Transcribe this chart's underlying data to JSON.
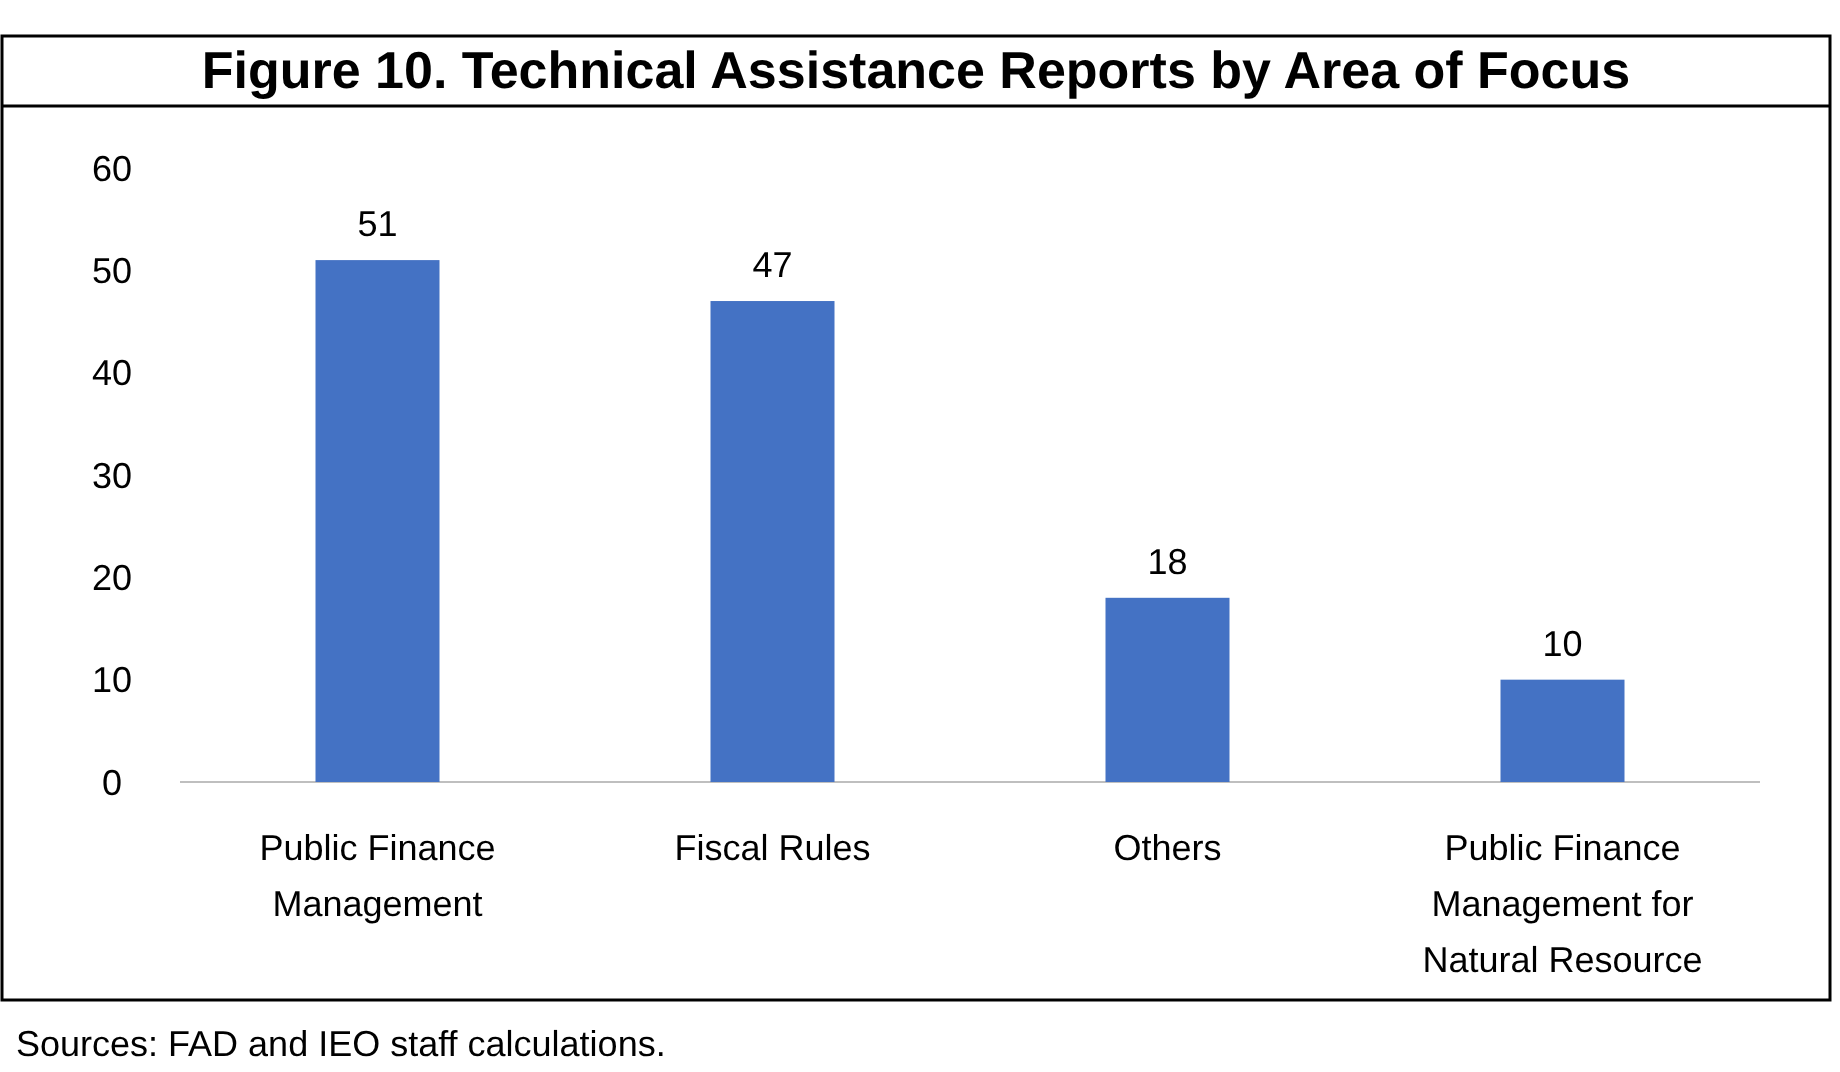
{
  "chart_data": {
    "type": "bar",
    "title": "Figure 10. Technical Assistance Reports by Area of Focus",
    "categories": [
      "Public Finance Management",
      "Fiscal Rules",
      "Others",
      "Public Finance Management for Natural Resource"
    ],
    "values": [
      51,
      47,
      18,
      10
    ],
    "color": "#4472c4",
    "ylim": [
      0,
      60
    ],
    "yticks": [
      0,
      10,
      20,
      30,
      40,
      50,
      60
    ],
    "grid": false,
    "data_labels": true,
    "annotations": [
      "Sources: FAD and IEO staff calculations."
    ]
  }
}
